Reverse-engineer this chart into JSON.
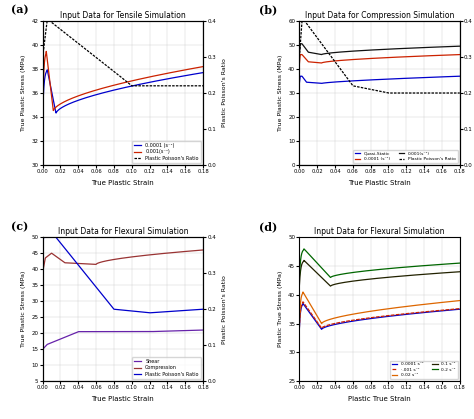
{
  "panel_a": {
    "title": "Input Data for Tensile Simulation",
    "xlabel": "True Plastic Strain",
    "ylabel": "True Plastic Stress (MPa)",
    "ylabel2": "Plastic Poisson's Ratio",
    "ylim": [
      30,
      42
    ],
    "ylim2": [
      0.0,
      0.4
    ],
    "xlim": [
      0,
      0.18
    ],
    "yticks": [
      30,
      32,
      34,
      36,
      38,
      40,
      42
    ],
    "yticks2": [
      0.0,
      0.1,
      0.2,
      0.3,
      0.4
    ],
    "xticks": [
      0.0,
      0.02,
      0.04,
      0.06,
      0.08,
      0.1,
      0.12,
      0.14,
      0.16,
      0.18
    ],
    "label": "(a)"
  },
  "panel_b": {
    "title": "Input Data for Compression Simulation",
    "xlabel": "True Plastic Strain",
    "ylabel": "True Plastic Stress (MPa)",
    "ylabel2": "Plastic Poisson's Ratio",
    "ylim": [
      0,
      60
    ],
    "ylim2": [
      0.0,
      0.4
    ],
    "xlim": [
      0,
      0.18
    ],
    "yticks": [
      0,
      10,
      20,
      30,
      40,
      50,
      60
    ],
    "yticks2": [
      0.0,
      0.1,
      0.2,
      0.3,
      0.4
    ],
    "xticks": [
      0.0,
      0.02,
      0.04,
      0.06,
      0.08,
      0.1,
      0.12,
      0.14,
      0.16,
      0.18
    ],
    "label": "(b)"
  },
  "panel_c": {
    "title": "Input Data for Flexural Simulation",
    "xlabel": "True Plastic Strain",
    "ylabel": "True Plastic Stress (MPa)",
    "ylabel2": "Plastic Poisson's Ratio",
    "ylim": [
      5,
      50
    ],
    "ylim2": [
      0.0,
      0.4
    ],
    "xlim": [
      0,
      0.18
    ],
    "yticks": [
      5,
      10,
      15,
      20,
      25,
      30,
      35,
      40,
      45,
      50
    ],
    "yticks2": [
      0.0,
      0.1,
      0.2,
      0.3,
      0.4
    ],
    "xticks": [
      0.0,
      0.02,
      0.04,
      0.06,
      0.08,
      0.1,
      0.12,
      0.14,
      0.16,
      0.18
    ],
    "label": "(c)"
  },
  "panel_d": {
    "title": "Input Data for Flexural Simulation",
    "xlabel": "Plastic True Strain",
    "ylabel": "Plastic True Stress (MPa)",
    "ylim": [
      25,
      50
    ],
    "xlim": [
      0,
      0.18
    ],
    "yticks": [
      25,
      30,
      35,
      40,
      45,
      50
    ],
    "xticks": [
      0.0,
      0.02,
      0.04,
      0.06,
      0.08,
      0.1,
      0.12,
      0.14,
      0.16,
      0.18
    ],
    "label": "(d)"
  }
}
